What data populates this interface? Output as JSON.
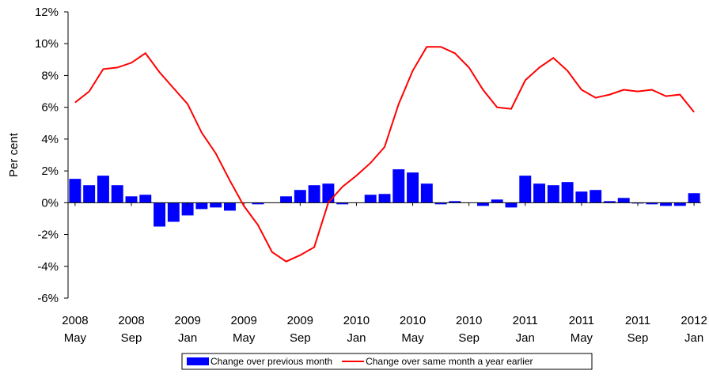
{
  "chart_data": {
    "type": "bar-line",
    "y_label": "Per cent",
    "categories": [
      [
        "2008",
        "May"
      ],
      null,
      null,
      null,
      [
        "2008",
        "Sep"
      ],
      null,
      null,
      null,
      [
        "2009",
        "Jan"
      ],
      null,
      null,
      null,
      [
        "2009",
        "May"
      ],
      null,
      null,
      null,
      [
        "2009",
        "Sep"
      ],
      null,
      null,
      null,
      [
        "2010",
        "Jan"
      ],
      null,
      null,
      null,
      [
        "2010",
        "May"
      ],
      null,
      null,
      null,
      [
        "2010",
        "Sep"
      ],
      null,
      null,
      null,
      [
        "2011",
        "Jan"
      ],
      null,
      null,
      null,
      [
        "2011",
        "May"
      ],
      null,
      null,
      null,
      [
        "2011",
        "Sep"
      ],
      null,
      null,
      null,
      [
        "2012",
        "Jan"
      ]
    ],
    "series": [
      {
        "name": "Change over previous month",
        "type": "bar",
        "color": "#0000ff",
        "values": [
          1.5,
          1.1,
          1.7,
          1.1,
          0.4,
          0.5,
          -1.5,
          -1.2,
          -0.8,
          -0.4,
          -0.3,
          -0.5,
          0,
          -0.1,
          0,
          0.4,
          0.8,
          1.1,
          1.2,
          -0.1,
          0,
          0.5,
          0.55,
          2.1,
          1.9,
          1.2,
          -0.1,
          0.1,
          0,
          -0.2,
          0.2,
          -0.3,
          1.7,
          1.2,
          1.1,
          1.3,
          0.7,
          0.8,
          0.1,
          0.3,
          -0.05,
          -0.1,
          -0.2,
          -0.2,
          0.6
        ]
      },
      {
        "name": "Change over same month a year earlier",
        "type": "line",
        "color": "#ff0000",
        "values": [
          6.3,
          7.0,
          8.4,
          8.5,
          8.8,
          9.4,
          8.2,
          7.2,
          6.2,
          4.4,
          3.1,
          1.4,
          -0.2,
          -1.4,
          -3.1,
          -3.7,
          -3.3,
          -2.8,
          0,
          1.0,
          1.7,
          2.5,
          3.5,
          6.2,
          8.3,
          9.8,
          9.8,
          9.4,
          8.5,
          7.1,
          6.0,
          5.9,
          7.7,
          8.5,
          9.1,
          8.3,
          7.1,
          6.6,
          6.8,
          7.1,
          7.0,
          7.1,
          6.7,
          6.8,
          5.7
        ]
      }
    ],
    "ylim": [
      -6,
      12
    ],
    "yticks": [
      {
        "value": -6,
        "label": "-6%"
      },
      {
        "value": -4,
        "label": "-4%"
      },
      {
        "value": -2,
        "label": "-2%"
      },
      {
        "value": 0,
        "label": "0%"
      },
      {
        "value": 2,
        "label": "2%"
      },
      {
        "value": 4,
        "label": "4%"
      },
      {
        "value": 6,
        "label": "6%"
      },
      {
        "value": 8,
        "label": "8%"
      },
      {
        "value": 10,
        "label": "10%"
      },
      {
        "value": 12,
        "label": "12%"
      }
    ],
    "legend": "bottom"
  }
}
